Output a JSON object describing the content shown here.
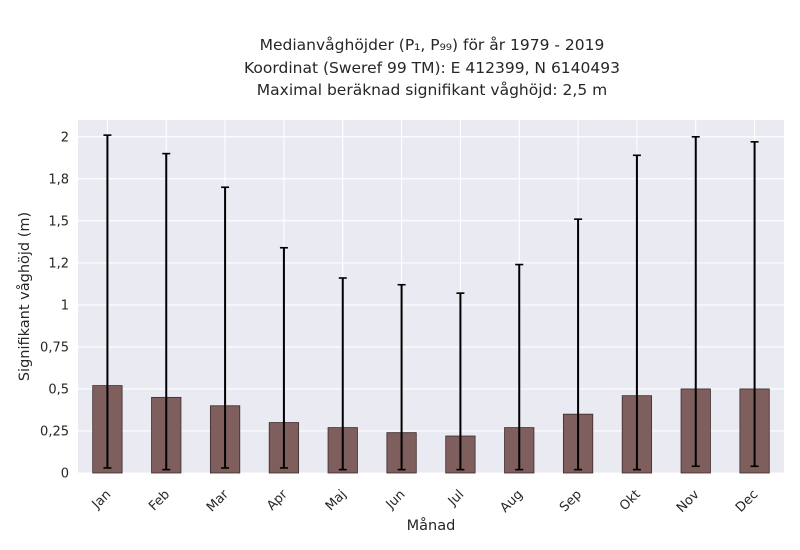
{
  "chart_data": {
    "type": "bar",
    "title_lines": [
      "Medianvåghöjder (P₁, P₉₉) för år 1979 - 2019",
      "Koordinat (Sweref 99 TM): E 412399, N 6140493",
      "Maximal beräknad signifikant våghöjd: 2,5 m"
    ],
    "xlabel": "Månad",
    "ylabel": "Signifikant våghöjd (m)",
    "categories": [
      "Jan",
      "Feb",
      "Mar",
      "Apr",
      "Maj",
      "Jun",
      "Jul",
      "Aug",
      "Sep",
      "Okt",
      "Nov",
      "Dec"
    ],
    "values": [
      0.52,
      0.45,
      0.4,
      0.3,
      0.27,
      0.24,
      0.22,
      0.27,
      0.35,
      0.46,
      0.5,
      0.5
    ],
    "p1": [
      0.03,
      0.02,
      0.03,
      0.03,
      0.02,
      0.02,
      0.02,
      0.02,
      0.02,
      0.02,
      0.04,
      0.04
    ],
    "p99": [
      2.01,
      1.9,
      1.7,
      1.34,
      1.16,
      1.12,
      1.07,
      1.24,
      1.51,
      1.89,
      2.0,
      1.97
    ],
    "ylim": [
      0,
      2.1
    ],
    "yticks": [
      0,
      0.25,
      0.5,
      0.75,
      1,
      1.25,
      1.5,
      1.75,
      2
    ],
    "ytick_labels": [
      "0",
      "0,25",
      "0,5",
      "0,75",
      "1",
      "1,2",
      "1,5",
      "1,8",
      "2"
    ],
    "grid": true,
    "colors": {
      "bar": "#7f5e5e",
      "bar_edge": "#3c2a2a",
      "error": "#000000",
      "plot_bg": "#eaeaf2",
      "grid": "#ffffff"
    }
  }
}
